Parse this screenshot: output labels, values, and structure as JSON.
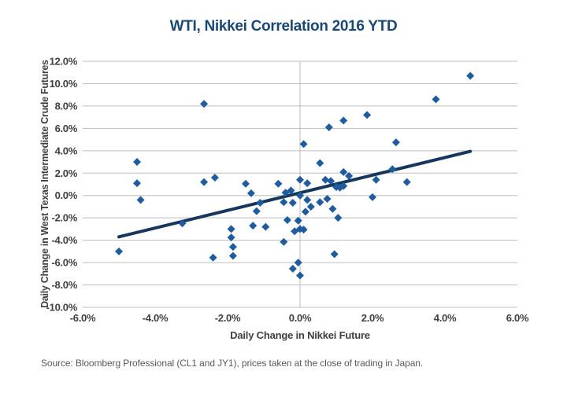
{
  "header": {
    "title": "WTI, Nikkei Correlation 2016 YTD"
  },
  "footer": {
    "source": "Source: Bloomberg Professional (CL1 and JY1), prices taken at the close of trading in Japan."
  },
  "chart_data": {
    "type": "scatter",
    "title": "WTI, Nikkei Correlation 2016 YTD",
    "xlabel": "Daily Change in Nikkei Future",
    "ylabel": "Daily Change in West Texas Intermediate Crude Futures",
    "units": "percent",
    "xlim": [
      -6,
      6
    ],
    "ylim": [
      -10,
      12
    ],
    "x_ticks": [
      "-6.0%",
      "-4.0%",
      "-2.0%",
      "0.0%",
      "2.0%",
      "4.0%",
      "6.0%"
    ],
    "x_tick_values": [
      -6,
      -4,
      -2,
      0,
      2,
      4,
      6
    ],
    "y_ticks": [
      "12.0%",
      "10.0%",
      "8.0%",
      "6.0%",
      "4.0%",
      "2.0%",
      "0.0%",
      "-2.0%",
      "-4.0%",
      "-6.0%",
      "-8.0%",
      "-10.0%"
    ],
    "y_tick_values": [
      12,
      10,
      8,
      6,
      4,
      2,
      0,
      -2,
      -4,
      -6,
      -8,
      -10
    ],
    "grid": "horizontal gridlines at every 2%, single vertical gridline at x=0, no outer border",
    "legend": "none",
    "marker_shape": "diamond",
    "points": [
      [
        -5.0,
        -5.0
      ],
      [
        -4.5,
        3.0
      ],
      [
        -4.5,
        1.1
      ],
      [
        -4.4,
        -0.4
      ],
      [
        -3.25,
        -2.5
      ],
      [
        -2.65,
        8.2
      ],
      [
        -2.65,
        1.2
      ],
      [
        -2.35,
        1.6
      ],
      [
        -2.4,
        -5.55
      ],
      [
        -1.9,
        -3.0
      ],
      [
        -1.9,
        -3.75
      ],
      [
        -1.85,
        -4.6
      ],
      [
        -1.85,
        -5.4
      ],
      [
        -1.5,
        1.05
      ],
      [
        -1.35,
        0.2
      ],
      [
        -1.3,
        -2.7
      ],
      [
        -1.2,
        -1.4
      ],
      [
        -1.1,
        -0.65
      ],
      [
        -0.95,
        -2.8
      ],
      [
        -0.6,
        1.05
      ],
      [
        -0.45,
        -0.6
      ],
      [
        -0.45,
        -4.15
      ],
      [
        -0.4,
        0.25
      ],
      [
        -0.35,
        -2.2
      ],
      [
        -0.25,
        0.45
      ],
      [
        -0.2,
        -0.65
      ],
      [
        -0.2,
        -6.55
      ],
      [
        -0.15,
        -3.2
      ],
      [
        -0.05,
        -2.25
      ],
      [
        -0.05,
        -6.0
      ],
      [
        0.0,
        1.4
      ],
      [
        0.0,
        0.0
      ],
      [
        0.0,
        -3.0
      ],
      [
        0.0,
        -7.15
      ],
      [
        0.1,
        4.6
      ],
      [
        0.1,
        -3.05
      ],
      [
        0.15,
        -1.45
      ],
      [
        0.2,
        1.1
      ],
      [
        0.2,
        -0.4
      ],
      [
        0.3,
        -1.0
      ],
      [
        0.55,
        2.9
      ],
      [
        0.55,
        -0.6
      ],
      [
        0.8,
        6.1
      ],
      [
        0.7,
        1.4
      ],
      [
        0.85,
        1.3
      ],
      [
        0.75,
        -0.3
      ],
      [
        0.9,
        -1.2
      ],
      [
        0.95,
        -5.25
      ],
      [
        1.0,
        0.75
      ],
      [
        1.1,
        0.7
      ],
      [
        1.2,
        0.85
      ],
      [
        1.05,
        -2.0
      ],
      [
        1.2,
        6.7
      ],
      [
        1.2,
        2.1
      ],
      [
        1.35,
        1.75
      ],
      [
        1.85,
        7.2
      ],
      [
        2.0,
        -0.15
      ],
      [
        2.1,
        1.4
      ],
      [
        2.55,
        2.35
      ],
      [
        2.65,
        4.75
      ],
      [
        2.95,
        1.2
      ],
      [
        3.75,
        8.6
      ],
      [
        4.7,
        10.7
      ]
    ],
    "trend_line": {
      "x1": -5.0,
      "y1": -3.7,
      "x2": 4.7,
      "y2": 3.95
    },
    "colors": {
      "title": "#1a4876",
      "marker": "#1f5c9f",
      "trend": "#17365c",
      "grid": "#bdbdbd",
      "tick_text": "#404040",
      "source_text": "#58595b"
    }
  }
}
